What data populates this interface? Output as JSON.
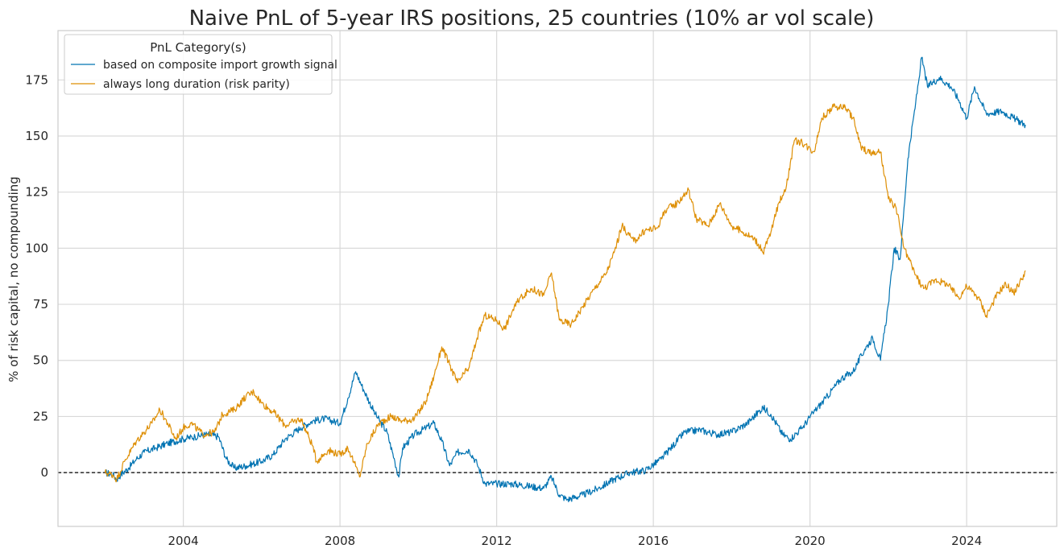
{
  "chart_data": {
    "type": "line",
    "title": "Naive PnL of 5-year IRS positions, 25 countries (10% ar vol scale)",
    "xlabel": "",
    "ylabel": "% of risk capital, no compounding",
    "xlim": [
      2000.8,
      2026.3
    ],
    "ylim": [
      -24,
      197
    ],
    "x_ticks": [
      2004,
      2008,
      2012,
      2016,
      2020,
      2024
    ],
    "x_tick_labels": [
      "2004",
      "2008",
      "2012",
      "2016",
      "2020",
      "2024"
    ],
    "y_ticks": [
      0,
      25,
      50,
      75,
      100,
      125,
      150,
      175
    ],
    "y_tick_labels": [
      "0",
      "25",
      "50",
      "75",
      "100",
      "125",
      "150",
      "175"
    ],
    "grid": true,
    "zero_line": {
      "y": 0,
      "style": "dashed",
      "color": "#000000"
    },
    "legend": {
      "title": "PnL Category(s)",
      "placement": "top-left"
    },
    "series": [
      {
        "name": "based on composite import growth signal",
        "color": "#0173b2",
        "points": [
          [
            2002.0,
            0
          ],
          [
            2002.2,
            -1
          ],
          [
            2002.3,
            -3
          ],
          [
            2002.4,
            -1
          ],
          [
            2002.6,
            2
          ],
          [
            2002.8,
            6
          ],
          [
            2003.0,
            9
          ],
          [
            2003.3,
            11
          ],
          [
            2003.6,
            13
          ],
          [
            2004.0,
            15
          ],
          [
            2004.3,
            16
          ],
          [
            2004.6,
            17
          ],
          [
            2004.9,
            16
          ],
          [
            2005.1,
            6
          ],
          [
            2005.3,
            2
          ],
          [
            2005.6,
            3
          ],
          [
            2006.0,
            5
          ],
          [
            2006.3,
            8
          ],
          [
            2006.6,
            15
          ],
          [
            2007.0,
            20
          ],
          [
            2007.3,
            23
          ],
          [
            2007.6,
            24
          ],
          [
            2008.0,
            22
          ],
          [
            2008.2,
            33
          ],
          [
            2008.4,
            45
          ],
          [
            2008.6,
            37
          ],
          [
            2008.9,
            26
          ],
          [
            2009.2,
            18
          ],
          [
            2009.4,
            5
          ],
          [
            2009.5,
            -2
          ],
          [
            2009.6,
            11
          ],
          [
            2009.9,
            17
          ],
          [
            2010.2,
            20
          ],
          [
            2010.4,
            22
          ],
          [
            2010.6,
            14
          ],
          [
            2010.8,
            3
          ],
          [
            2011.0,
            9
          ],
          [
            2011.3,
            10
          ],
          [
            2011.5,
            4
          ],
          [
            2011.7,
            -5
          ],
          [
            2012.0,
            -5
          ],
          [
            2012.4,
            -5
          ],
          [
            2012.8,
            -6
          ],
          [
            2013.2,
            -7
          ],
          [
            2013.4,
            -2
          ],
          [
            2013.6,
            -10
          ],
          [
            2013.8,
            -12
          ],
          [
            2014.2,
            -10
          ],
          [
            2014.6,
            -7
          ],
          [
            2015.0,
            -3
          ],
          [
            2015.4,
            0
          ],
          [
            2015.8,
            1
          ],
          [
            2016.2,
            6
          ],
          [
            2016.5,
            12
          ],
          [
            2016.8,
            18
          ],
          [
            2017.2,
            19
          ],
          [
            2017.6,
            17
          ],
          [
            2018.0,
            18
          ],
          [
            2018.4,
            22
          ],
          [
            2018.8,
            29
          ],
          [
            2019.0,
            26
          ],
          [
            2019.3,
            17
          ],
          [
            2019.5,
            15
          ],
          [
            2019.8,
            20
          ],
          [
            2020.1,
            27
          ],
          [
            2020.4,
            33
          ],
          [
            2020.8,
            42
          ],
          [
            2021.1,
            45
          ],
          [
            2021.4,
            55
          ],
          [
            2021.6,
            60
          ],
          [
            2021.8,
            50
          ],
          [
            2022.0,
            75
          ],
          [
            2022.15,
            100
          ],
          [
            2022.3,
            95
          ],
          [
            2022.5,
            140
          ],
          [
            2022.7,
            165
          ],
          [
            2022.85,
            185
          ],
          [
            2023.0,
            172
          ],
          [
            2023.3,
            176
          ],
          [
            2023.6,
            172
          ],
          [
            2023.8,
            166
          ],
          [
            2024.0,
            158
          ],
          [
            2024.2,
            172
          ],
          [
            2024.5,
            160
          ],
          [
            2024.9,
            161
          ],
          [
            2025.2,
            158
          ],
          [
            2025.5,
            155
          ]
        ]
      },
      {
        "name": "always long duration (risk parity)",
        "color": "#de8f05",
        "points": [
          [
            2002.0,
            0
          ],
          [
            2002.2,
            -1
          ],
          [
            2002.3,
            -3
          ],
          [
            2002.5,
            5
          ],
          [
            2002.8,
            14
          ],
          [
            2003.0,
            18
          ],
          [
            2003.2,
            22
          ],
          [
            2003.4,
            28
          ],
          [
            2003.6,
            22
          ],
          [
            2003.8,
            15
          ],
          [
            2004.0,
            20
          ],
          [
            2004.2,
            22
          ],
          [
            2004.5,
            17
          ],
          [
            2004.8,
            18
          ],
          [
            2005.0,
            26
          ],
          [
            2005.3,
            28
          ],
          [
            2005.6,
            34
          ],
          [
            2005.8,
            36
          ],
          [
            2006.0,
            31
          ],
          [
            2006.3,
            27
          ],
          [
            2006.6,
            21
          ],
          [
            2007.0,
            24
          ],
          [
            2007.3,
            12
          ],
          [
            2007.4,
            5
          ],
          [
            2007.7,
            10
          ],
          [
            2008.0,
            8
          ],
          [
            2008.2,
            11
          ],
          [
            2008.35,
            5
          ],
          [
            2008.5,
            -2
          ],
          [
            2008.7,
            13
          ],
          [
            2009.0,
            22
          ],
          [
            2009.3,
            25
          ],
          [
            2009.6,
            23
          ],
          [
            2009.9,
            24
          ],
          [
            2010.2,
            32
          ],
          [
            2010.4,
            43
          ],
          [
            2010.6,
            56
          ],
          [
            2010.8,
            48
          ],
          [
            2011.0,
            40
          ],
          [
            2011.3,
            47
          ],
          [
            2011.5,
            60
          ],
          [
            2011.7,
            70
          ],
          [
            2012.0,
            68
          ],
          [
            2012.2,
            64
          ],
          [
            2012.4,
            72
          ],
          [
            2012.6,
            78
          ],
          [
            2012.9,
            82
          ],
          [
            2013.2,
            79
          ],
          [
            2013.4,
            89
          ],
          [
            2013.6,
            68
          ],
          [
            2013.9,
            66
          ],
          [
            2014.2,
            74
          ],
          [
            2014.5,
            82
          ],
          [
            2014.8,
            89
          ],
          [
            2015.0,
            98
          ],
          [
            2015.2,
            110
          ],
          [
            2015.5,
            103
          ],
          [
            2015.8,
            108
          ],
          [
            2016.1,
            109
          ],
          [
            2016.3,
            117
          ],
          [
            2016.6,
            120
          ],
          [
            2016.9,
            126
          ],
          [
            2017.1,
            113
          ],
          [
            2017.4,
            110
          ],
          [
            2017.7,
            120
          ],
          [
            2018.0,
            110
          ],
          [
            2018.3,
            107
          ],
          [
            2018.6,
            104
          ],
          [
            2018.8,
            98
          ],
          [
            2019.0,
            107
          ],
          [
            2019.2,
            120
          ],
          [
            2019.4,
            128
          ],
          [
            2019.6,
            148
          ],
          [
            2019.8,
            147
          ],
          [
            2020.1,
            143
          ],
          [
            2020.3,
            158
          ],
          [
            2020.6,
            163
          ],
          [
            2020.9,
            163
          ],
          [
            2021.1,
            158
          ],
          [
            2021.3,
            145
          ],
          [
            2021.6,
            142
          ],
          [
            2021.8,
            143
          ],
          [
            2022.0,
            122
          ],
          [
            2022.2,
            118
          ],
          [
            2022.4,
            100
          ],
          [
            2022.7,
            88
          ],
          [
            2022.9,
            82
          ],
          [
            2023.2,
            86
          ],
          [
            2023.5,
            84
          ],
          [
            2023.8,
            78
          ],
          [
            2024.0,
            83
          ],
          [
            2024.3,
            78
          ],
          [
            2024.5,
            70
          ],
          [
            2024.8,
            80
          ],
          [
            2025.0,
            84
          ],
          [
            2025.2,
            80
          ],
          [
            2025.4,
            86
          ],
          [
            2025.5,
            90
          ]
        ]
      }
    ]
  }
}
